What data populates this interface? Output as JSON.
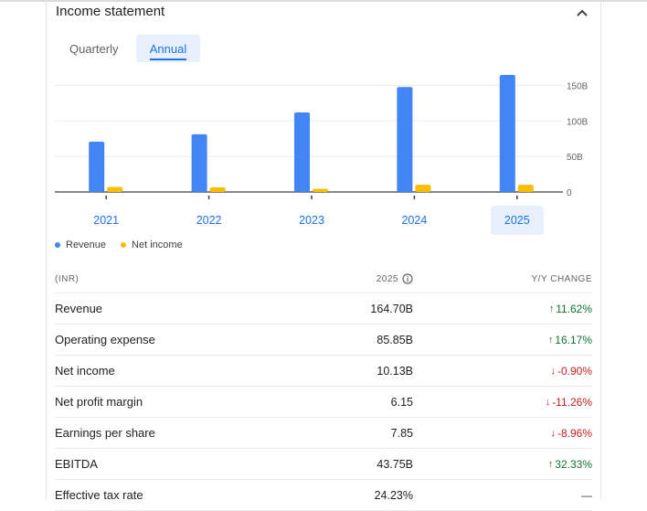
{
  "header": {
    "title": "Income statement"
  },
  "tabs": [
    {
      "label": "Quarterly",
      "selected": false
    },
    {
      "label": "Annual",
      "selected": true
    }
  ],
  "chart_data": {
    "type": "bar",
    "categories": [
      "2021",
      "2022",
      "2023",
      "2024",
      "2025"
    ],
    "selected_category": "2025",
    "series": [
      {
        "name": "Revenue",
        "color": "#4285f4",
        "values": [
          70.8,
          81.2,
          112.0,
          147.6,
          164.7
        ]
      },
      {
        "name": "Net income",
        "color": "#fbbc04",
        "values": [
          7.0,
          6.5,
          4.5,
          10.2,
          10.13
        ]
      }
    ],
    "y_ticks": [
      "0",
      "50B",
      "100B",
      "150B"
    ],
    "ylim": [
      0,
      175
    ],
    "grid": true,
    "legend": "bottom-left"
  },
  "legend": [
    {
      "label": "Revenue",
      "color": "#4285f4"
    },
    {
      "label": "Net income",
      "color": "#fbbc04"
    }
  ],
  "table": {
    "head": {
      "col1": "(INR)",
      "col2": "2025",
      "col3": "Y/Y CHANGE"
    },
    "rows": [
      {
        "label": "Revenue",
        "value": "164.70B",
        "change": "11.62%",
        "dir": "up"
      },
      {
        "label": "Operating expense",
        "value": "85.85B",
        "change": "16.17%",
        "dir": "up"
      },
      {
        "label": "Net income",
        "value": "10.13B",
        "change": "-0.90%",
        "dir": "down"
      },
      {
        "label": "Net profit margin",
        "value": "6.15",
        "change": "-11.26%",
        "dir": "down"
      },
      {
        "label": "Earnings per share",
        "value": "7.85",
        "change": "-8.96%",
        "dir": "down"
      },
      {
        "label": "EBITDA",
        "value": "43.75B",
        "change": "32.33%",
        "dir": "up"
      },
      {
        "label": "Effective tax rate",
        "value": "24.23%",
        "change": "—",
        "dir": "flat"
      }
    ]
  }
}
